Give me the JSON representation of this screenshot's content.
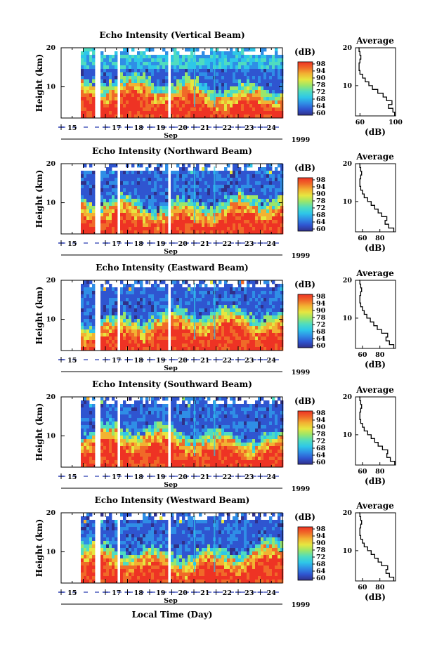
{
  "chart_data": {
    "type": "heatmap",
    "xlabel": "Local Time (Day)",
    "month_label": "Sep",
    "year_label": "1999",
    "x_ticks": [
      "15",
      "17",
      "18",
      "19",
      "20",
      "21",
      "22",
      "23",
      "24"
    ],
    "x_range_days": [
      15,
      25
    ],
    "data_gaps_days": [
      [
        15.0,
        15.85
      ],
      [
        16.55,
        16.75
      ],
      [
        17.5,
        17.72
      ],
      [
        17.88,
        17.95
      ],
      [
        19.88,
        19.92
      ]
    ],
    "ylabel": "Height (km)",
    "y_ticks": [
      "10",
      "20"
    ],
    "ylim_km": [
      2,
      20
    ],
    "colorbar": {
      "unit": "(dB)",
      "ticks": [
        "98",
        "94",
        "90",
        "78",
        "72",
        "68",
        "64",
        "60"
      ],
      "colors": [
        "#30308a",
        "#2f55d0",
        "#2f8ee6",
        "#2ec7e8",
        "#4fdcc0",
        "#9ae66a",
        "#e6e640",
        "#f2b232",
        "#f06a28",
        "#ee3324"
      ]
    },
    "panels": [
      {
        "title": "Echo Intensity (Vertical Beam)",
        "average": {
          "title": "Average",
          "xlabel": "(dB)",
          "x_ticks": [
            "60",
            "100"
          ],
          "xlim": [
            55,
            100
          ],
          "height_km": [
            2,
            3,
            4,
            5,
            6,
            7,
            8,
            9,
            10,
            11,
            12,
            13,
            14,
            15,
            16,
            17,
            18,
            19,
            20
          ],
          "db": [
            99,
            97,
            92,
            96,
            90,
            86,
            80,
            74,
            70,
            66,
            63,
            60,
            59,
            59,
            60,
            61,
            60,
            59,
            58
          ]
        }
      },
      {
        "title": "Echo Intensity (Northward Beam)",
        "average": {
          "title": "Average",
          "xlabel": "(dB)",
          "x_ticks": [
            "60",
            "80"
          ],
          "xlim": [
            52,
            98
          ],
          "height_km": [
            2,
            3,
            4,
            5,
            6,
            7,
            8,
            9,
            10,
            11,
            12,
            13,
            14,
            15,
            16,
            17,
            18,
            19,
            20
          ],
          "db": [
            96,
            90,
            86,
            88,
            82,
            78,
            74,
            70,
            66,
            62,
            60,
            58,
            57,
            57,
            58,
            59,
            58,
            57,
            56
          ]
        }
      },
      {
        "title": "Echo Intensity (Eastward Beam)",
        "average": {
          "title": "Average",
          "xlabel": "(dB)",
          "x_ticks": [
            "60",
            "80"
          ],
          "xlim": [
            52,
            98
          ],
          "height_km": [
            2,
            3,
            4,
            5,
            6,
            7,
            8,
            9,
            10,
            11,
            12,
            13,
            14,
            15,
            16,
            17,
            18,
            19,
            20
          ],
          "db": [
            96,
            91,
            87,
            89,
            82,
            77,
            73,
            69,
            65,
            62,
            60,
            58,
            57,
            57,
            58,
            59,
            58,
            57,
            56
          ]
        }
      },
      {
        "title": "Echo Intensity (Southward Beam)",
        "average": {
          "title": "Average",
          "xlabel": "(dB)",
          "x_ticks": [
            "60",
            "80"
          ],
          "xlim": [
            52,
            98
          ],
          "height_km": [
            2,
            3,
            4,
            5,
            6,
            7,
            8,
            9,
            10,
            11,
            12,
            13,
            14,
            15,
            16,
            17,
            18,
            19,
            20
          ],
          "db": [
            97,
            92,
            88,
            89,
            83,
            78,
            74,
            70,
            66,
            62,
            60,
            58,
            57,
            57,
            58,
            59,
            58,
            57,
            56
          ]
        }
      },
      {
        "title": "Echo Intensity (Westward Beam)",
        "average": {
          "title": "Average",
          "xlabel": "(dB)",
          "x_ticks": [
            "60",
            "80"
          ],
          "xlim": [
            52,
            98
          ],
          "height_km": [
            2,
            3,
            4,
            5,
            6,
            7,
            8,
            9,
            10,
            11,
            12,
            13,
            14,
            15,
            16,
            17,
            18,
            19,
            20
          ],
          "db": [
            96,
            91,
            87,
            89,
            82,
            78,
            74,
            70,
            66,
            62,
            60,
            58,
            57,
            57,
            58,
            59,
            58,
            57,
            56
          ]
        }
      }
    ]
  }
}
